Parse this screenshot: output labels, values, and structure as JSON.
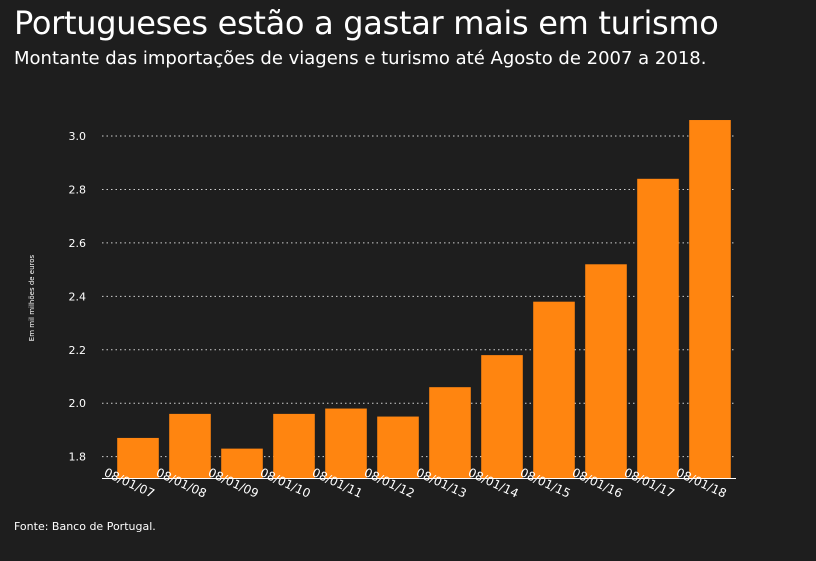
{
  "title": "Portugueses estão a gastar mais em turismo",
  "subtitle": "Montante das importações de viagens e turismo até Agosto de 2007 a 2018.",
  "source": "Fonte: Banco de Portugal.",
  "colors": {
    "background": "#1e1e1e",
    "bar": "#ff8510",
    "grid": "#cfcfcf",
    "text": "#ffffff"
  },
  "chart_data": {
    "type": "bar",
    "ylabel": "Em mil milhões de euros",
    "xlabel": "",
    "ylim": [
      1.72,
      3.12
    ],
    "yticks": [
      1.8,
      2.0,
      2.2,
      2.4,
      2.6,
      2.8,
      3.0
    ],
    "ytick_labels": [
      "1.8",
      "2.0",
      "2.2",
      "2.4",
      "2.6",
      "2.8",
      "3.0"
    ],
    "grid": true,
    "categories": [
      "08/01/07",
      "08/01/08",
      "08/01/09",
      "08/01/10",
      "08/01/11",
      "08/01/12",
      "08/01/13",
      "08/01/14",
      "08/01/15",
      "08/01/16",
      "08/01/17",
      "08/01/18"
    ],
    "values": [
      1.87,
      1.96,
      1.83,
      1.96,
      1.98,
      1.95,
      2.06,
      2.18,
      2.38,
      2.52,
      2.84,
      3.06
    ]
  }
}
